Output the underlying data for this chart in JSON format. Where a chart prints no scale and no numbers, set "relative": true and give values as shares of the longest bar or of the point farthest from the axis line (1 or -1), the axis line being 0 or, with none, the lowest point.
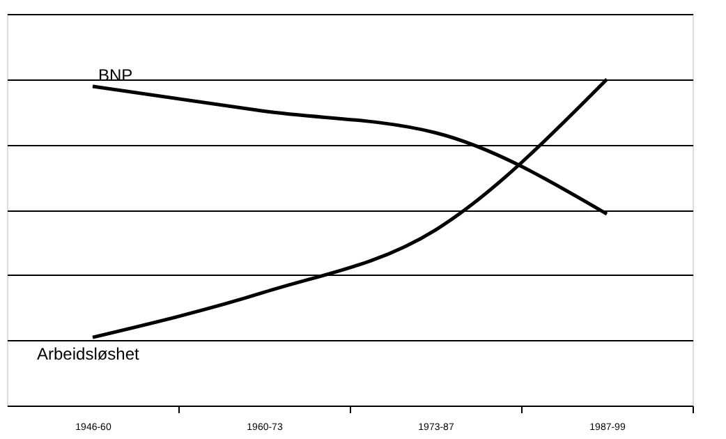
{
  "chart_data": {
    "type": "line",
    "relative": true,
    "grid": "y",
    "legend": false,
    "marker": "none",
    "line_style": "solid",
    "categories": [
      "1946-60",
      "1960-73",
      "1973-87",
      "1987-99"
    ],
    "series": [
      {
        "name": "BNP",
        "color": "#000000",
        "values": [
          0.978,
          0.902,
          0.836,
          0.587
        ]
      },
      {
        "name": "Arbeidsløshet",
        "color": "#000000",
        "values": [
          0.209,
          0.347,
          0.538,
          1.0
        ]
      }
    ]
  }
}
